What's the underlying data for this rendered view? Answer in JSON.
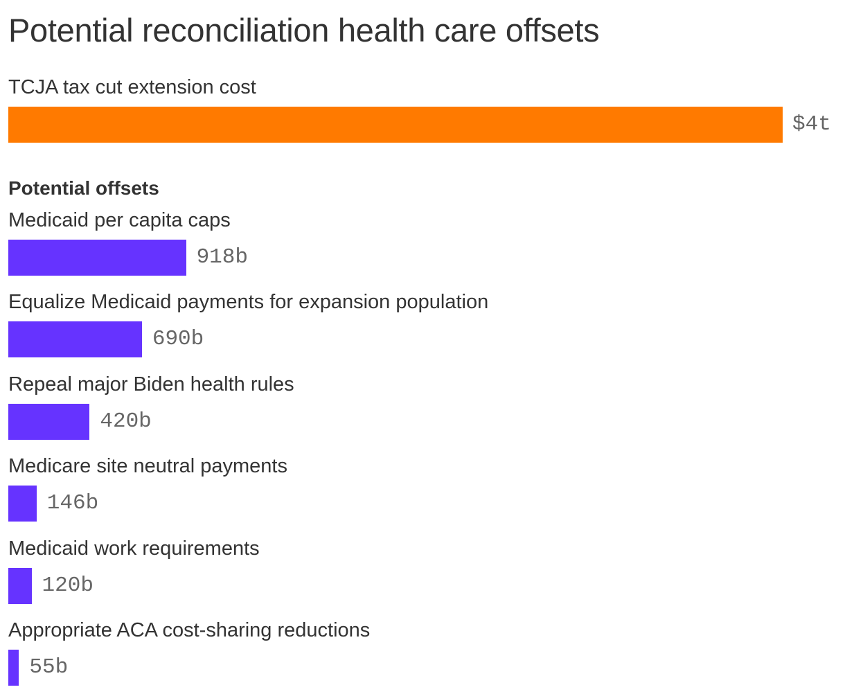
{
  "chart_data": {
    "type": "bar",
    "orientation": "horizontal",
    "title": "Potential reconciliation health care offsets",
    "total": {
      "label": "TCJA tax cut extension cost",
      "value": 4000,
      "display": "$4t",
      "color": "#FF7A00"
    },
    "section_label": "Potential offsets",
    "unit": "billions of dollars",
    "categories": [
      "Medicaid per capita caps",
      "Equalize Medicaid payments for expansion population",
      "Repeal major Biden health rules",
      "Medicare site neutral payments",
      "Medicaid work requirements",
      "Appropriate ACA cost-sharing reductions"
    ],
    "values": [
      918,
      690,
      420,
      146,
      120,
      55
    ],
    "value_labels": [
      "918b",
      "690b",
      "420b",
      "146b",
      "120b",
      "55b"
    ],
    "bar_color": "#6633FF",
    "xlim": [
      0,
      4000
    ],
    "grid": false,
    "legend": "none"
  }
}
